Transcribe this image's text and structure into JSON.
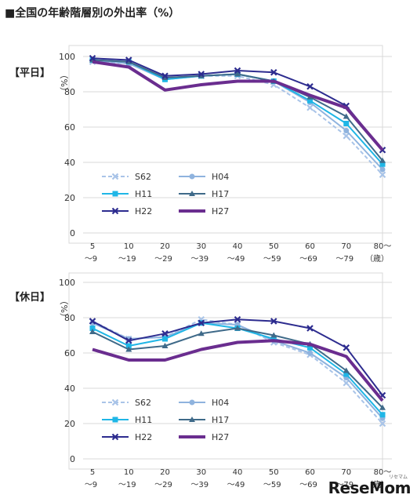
{
  "title": "■全国の年齢階層別の外出率（%）",
  "watermark": "ReseMom",
  "watermark_sub": "リセマム",
  "colors": {
    "S62": "#a9c4e8",
    "H04": "#8fb3de",
    "H11": "#1fb6e6",
    "H17": "#3f6a89",
    "H22": "#2d2c8f",
    "H27": "#6a2d8f"
  },
  "markers": {
    "S62": "x",
    "H04": "circle",
    "H11": "square",
    "H17": "triangle",
    "H22": "x",
    "H27": "none"
  },
  "chart_data": [
    {
      "type": "line",
      "panel_label": "【平日】",
      "ylabel": "（%）",
      "x_unit": "（歳）",
      "categories": [
        "5\n～9",
        "10\n～19",
        "20\n～29",
        "30\n～39",
        "40\n～49",
        "50\n～59",
        "60\n～69",
        "70\n～79",
        "80～"
      ],
      "ylim": [
        0,
        100
      ],
      "yticks": [
        0,
        20,
        40,
        60,
        80,
        100
      ],
      "grid": true,
      "legend_placement": "lower-left",
      "series": [
        {
          "name": "S62",
          "values": [
            97,
            96,
            88,
            89,
            89,
            84,
            71,
            55,
            33
          ]
        },
        {
          "name": "H04",
          "values": [
            98,
            96,
            87,
            89,
            90,
            86,
            74,
            58,
            36
          ]
        },
        {
          "name": "H11",
          "values": [
            98,
            97,
            87,
            89,
            90,
            86,
            75,
            62,
            39
          ]
        },
        {
          "name": "H17",
          "values": [
            98,
            97,
            88,
            89,
            90,
            86,
            77,
            66,
            41
          ]
        },
        {
          "name": "H22",
          "values": [
            99,
            98,
            89,
            90,
            92,
            91,
            83,
            72,
            47
          ]
        },
        {
          "name": "H27",
          "values": [
            97,
            94,
            81,
            84,
            86,
            86,
            78,
            71,
            47
          ]
        }
      ]
    },
    {
      "type": "line",
      "panel_label": "【休日】",
      "ylabel": "（%）",
      "x_unit": "（歳）",
      "categories": [
        "5\n～9",
        "10\n～19",
        "20\n～29",
        "30\n～39",
        "40\n～49",
        "50\n～59",
        "60\n～69",
        "70\n～79",
        "80～"
      ],
      "ylim": [
        0,
        100
      ],
      "yticks": [
        0,
        20,
        40,
        60,
        80,
        100
      ],
      "grid": true,
      "legend_placement": "lower-left",
      "series": [
        {
          "name": "S62",
          "values": [
            78,
            68,
            69,
            79,
            76,
            66,
            59,
            43,
            20
          ]
        },
        {
          "name": "H04",
          "values": [
            77,
            68,
            69,
            77,
            76,
            67,
            60,
            46,
            23
          ]
        },
        {
          "name": "H11",
          "values": [
            74,
            64,
            68,
            77,
            74,
            68,
            63,
            48,
            25
          ]
        },
        {
          "name": "H17",
          "values": [
            72,
            62,
            64,
            71,
            74,
            70,
            65,
            50,
            29
          ]
        },
        {
          "name": "H22",
          "values": [
            78,
            67,
            71,
            77,
            79,
            78,
            74,
            63,
            36
          ]
        },
        {
          "name": "H27",
          "values": [
            62,
            56,
            56,
            62,
            66,
            67,
            65,
            58,
            33
          ]
        }
      ]
    }
  ]
}
